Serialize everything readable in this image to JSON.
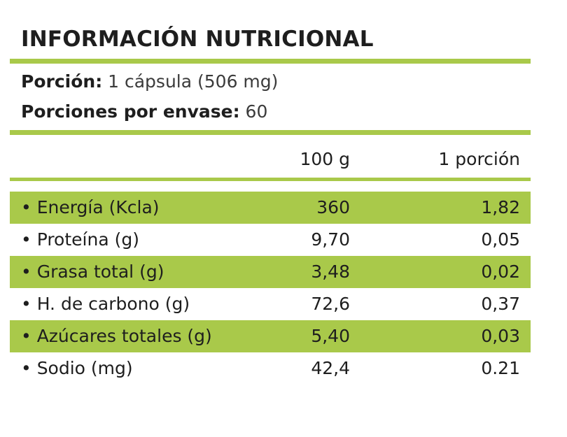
{
  "title": "INFORMACIÓN NUTRICIONAL",
  "serving": {
    "portion_label": "Porción:",
    "portion_value": "1 cápsula (506 mg)",
    "per_container_label": "Porciones por envase:",
    "per_container_value": "60"
  },
  "columns": {
    "per_100g": "100 g",
    "per_portion": "1 porción"
  },
  "rows": [
    {
      "label": "• Energía (Kcla)",
      "per_100g": "360",
      "per_portion": "1,82"
    },
    {
      "label": "• Proteína (g)",
      "per_100g": "9,70",
      "per_portion": "0,05"
    },
    {
      "label": "• Grasa total (g)",
      "per_100g": "3,48",
      "per_portion": "0,02"
    },
    {
      "label": "• H. de carbono (g)",
      "per_100g": "72,6",
      "per_portion": "0,37"
    },
    {
      "label": "• Azúcares totales (g)",
      "per_100g": "5,40",
      "per_portion": "0,03"
    },
    {
      "label": "• Sodio (mg)",
      "per_100g": "42,4",
      "per_portion": "0.21"
    }
  ],
  "colors": {
    "accent_green": "#a9c94a",
    "text": "#1e1e1e"
  }
}
